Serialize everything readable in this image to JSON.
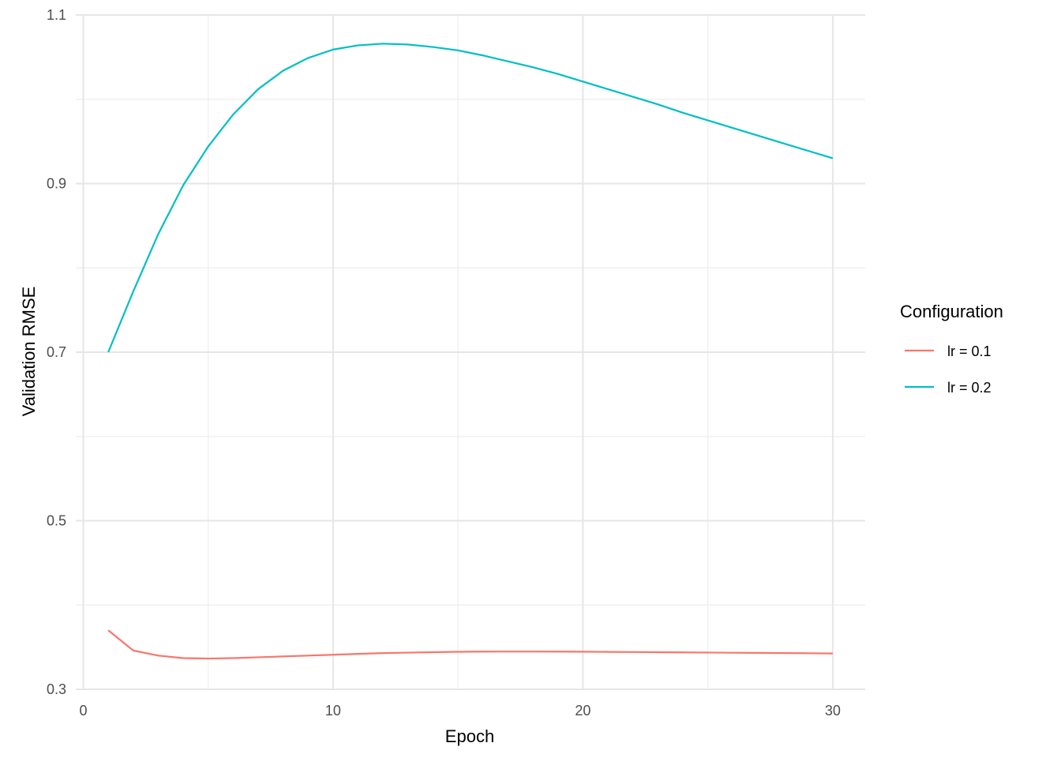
{
  "chart_data": {
    "type": "line",
    "title": "",
    "xlabel": "Epoch",
    "ylabel": "Validation RMSE",
    "xlim": [
      -0.3,
      31.3
    ],
    "ylim": [
      0.3,
      1.1
    ],
    "x_ticks": [
      0,
      10,
      20,
      30
    ],
    "x_tick_labels": [
      "0",
      "10",
      "20",
      "30"
    ],
    "x_minor_ticks": [
      5,
      15,
      25
    ],
    "y_ticks": [
      0.3,
      0.5,
      0.7,
      0.9,
      1.1
    ],
    "y_tick_labels": [
      "0.3",
      "0.5",
      "0.7",
      "0.9",
      "1.1"
    ],
    "y_minor_ticks": [
      0.4,
      0.6,
      0.8,
      1.0
    ],
    "grid": true,
    "legend": {
      "title": "Configuration",
      "placement": "right"
    },
    "x": [
      1,
      2,
      3,
      4,
      5,
      6,
      7,
      8,
      9,
      10,
      11,
      12,
      13,
      14,
      15,
      16,
      17,
      18,
      19,
      20,
      21,
      22,
      23,
      24,
      25,
      26,
      27,
      28,
      29,
      30
    ],
    "series": [
      {
        "name": "lr = 0.1",
        "color": "#F8766D",
        "values": [
          0.37,
          0.346,
          0.34,
          0.337,
          0.3365,
          0.337,
          0.338,
          0.339,
          0.34,
          0.341,
          0.342,
          0.343,
          0.3435,
          0.344,
          0.3445,
          0.3447,
          0.3448,
          0.3448,
          0.3447,
          0.3446,
          0.3444,
          0.3442,
          0.344,
          0.3438,
          0.3436,
          0.3434,
          0.3432,
          0.343,
          0.3428,
          0.3425
        ]
      },
      {
        "name": "lr = 0.2",
        "color": "#00BFC4",
        "values": [
          0.7,
          0.772,
          0.84,
          0.898,
          0.944,
          0.982,
          1.012,
          1.034,
          1.049,
          1.059,
          1.064,
          1.066,
          1.065,
          1.062,
          1.058,
          1.052,
          1.045,
          1.038,
          1.03,
          1.021,
          1.012,
          1.003,
          0.994,
          0.984,
          0.975,
          0.966,
          0.957,
          0.948,
          0.939,
          0.93
        ]
      }
    ]
  }
}
